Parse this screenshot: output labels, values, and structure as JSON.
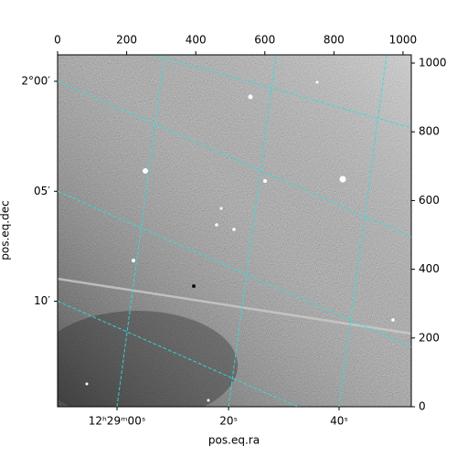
{
  "chart_data": {
    "type": "image",
    "xlabel": "pos.eq.ra",
    "ylabel": "pos.eq.dec",
    "xlim": [
      0,
      1024
    ],
    "ylim": [
      0,
      1024
    ],
    "xticks": [
      0,
      200,
      400,
      600,
      800,
      1000
    ],
    "yticks": [
      0,
      200,
      400,
      600,
      800,
      1000
    ],
    "ra_ticks": [
      {
        "value": 172,
        "label": "12ʰ29ᵐ00ˢ"
      },
      {
        "value": 495,
        "label": "20ˢ"
      },
      {
        "value": 815,
        "label": "40ˢ"
      }
    ],
    "dec_ticks": [
      {
        "value": 947,
        "label": "2°00′"
      },
      {
        "value": 627,
        "label": "05′"
      },
      {
        "value": 307,
        "label": "10′"
      }
    ],
    "grid": true,
    "grid_color": "#33dddd"
  }
}
